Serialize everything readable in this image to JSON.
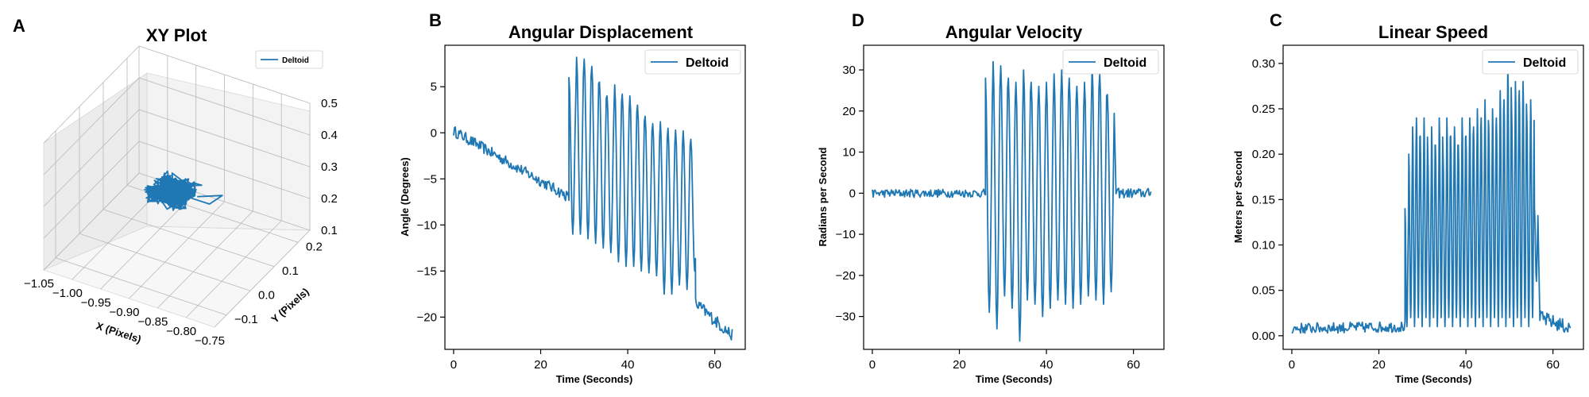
{
  "line_color": "#1f77b4",
  "chart_data": [
    {
      "id": "xy",
      "letter": "A",
      "type": "line3d",
      "title": "XY Plot",
      "xlabel": "X (Pixels)",
      "ylabel": "Y (Pixels)",
      "zlabel": "",
      "xlim": [
        -1.05,
        -0.75
      ],
      "ylim": [
        -0.15,
        0.25
      ],
      "zlim": [
        0.1,
        0.5
      ],
      "xticks": [
        "−1.05",
        "−1.00",
        "−0.95",
        "−0.90",
        "−0.85",
        "−0.80",
        "−0.75"
      ],
      "yticks": [
        "−0.1",
        "0.0",
        "0.1",
        "0.2"
      ],
      "zticks": [
        "0.1",
        "0.2",
        "0.3",
        "0.4",
        "0.5"
      ],
      "series": [
        {
          "name": "Deltoid",
          "center": [
            -0.9,
            0.03,
            0.3
          ],
          "spread": [
            0.035,
            0.045,
            0.02
          ]
        }
      ],
      "legend_loc": "upper-right"
    },
    {
      "id": "disp",
      "letter": "B",
      "type": "line",
      "title": "Angular Displacement",
      "xlabel": "Time (Seconds)",
      "ylabel": "Angle (Degrees)",
      "xlim": [
        -2,
        67
      ],
      "ylim": [
        -23.5,
        9.5
      ],
      "xticks": [
        0,
        20,
        40,
        60
      ],
      "yticks": [
        5,
        0,
        -5,
        -10,
        -15,
        -20
      ],
      "ytick_labels": [
        "5",
        "0",
        "−5",
        "−10",
        "−15",
        "−20"
      ],
      "series": [
        {
          "name": "Deltoid"
        }
      ],
      "legend_loc": "upper-right",
      "segments": [
        {
          "t_start": 0,
          "t_end": 26.5,
          "baseline_start": 0.2,
          "baseline_end": -7.0,
          "noise": 0.6
        },
        {
          "t_start": 26.5,
          "t_end": 55.6,
          "period": 1.75,
          "peaks": [
            6,
            8.2,
            8.0,
            7.2,
            5.5,
            4.0,
            5.2,
            4.2,
            4.0,
            3.0,
            1.8,
            1.0,
            1.2,
            0.5,
            0.3,
            0.2,
            -0.7
          ],
          "troughs": [
            -11,
            -11,
            -11.5,
            -12,
            -12.5,
            -13,
            -14,
            -14.5,
            -14.5,
            -15,
            -15.2,
            -15.5,
            -17.5,
            -17.5,
            -16.5,
            -17,
            -15
          ]
        },
        {
          "t_start": 55.6,
          "t_end": 64,
          "baseline_start": -18.5,
          "baseline_end": -22,
          "noise": 0.7
        }
      ]
    },
    {
      "id": "vel",
      "letter": "D",
      "type": "line",
      "title": "Angular Velocity",
      "xlabel": "Time (Seconds)",
      "ylabel": "Radians per Second",
      "xlim": [
        -2,
        67
      ],
      "ylim": [
        -38,
        36
      ],
      "xticks": [
        0,
        20,
        40,
        60
      ],
      "yticks": [
        30,
        20,
        10,
        0,
        -10,
        -20,
        -30
      ],
      "ytick_labels": [
        "30",
        "20",
        "10",
        "0",
        "−10",
        "−20",
        "−30"
      ],
      "series": [
        {
          "name": "Deltoid"
        }
      ],
      "legend_loc": "upper-right",
      "segments": [
        {
          "t_start": 0,
          "t_end": 26,
          "baseline_start": 0,
          "baseline_end": 0,
          "noise": 1.0
        },
        {
          "t_start": 26,
          "t_end": 56,
          "period": 1.75,
          "peaks": [
            28,
            32,
            31,
            28,
            27,
            30,
            27,
            26,
            27,
            29,
            30,
            28,
            26,
            27,
            31,
            29,
            24
          ],
          "troughs": [
            -29,
            -33,
            -25,
            -28,
            -36,
            -26,
            -27,
            -30,
            -28,
            -26,
            -27,
            -28,
            -27,
            -25,
            -26,
            -27,
            -24
          ]
        },
        {
          "t_start": 56,
          "t_end": 64,
          "baseline_start": 0,
          "baseline_end": 0,
          "noise": 1.2
        }
      ]
    },
    {
      "id": "speed",
      "letter": "C",
      "type": "line",
      "title": "Linear Speed",
      "xlabel": "Time (Seconds)",
      "ylabel": "Meters per Second",
      "xlim": [
        -2,
        67
      ],
      "ylim": [
        -0.015,
        0.32
      ],
      "xticks": [
        0,
        20,
        40,
        60
      ],
      "yticks": [
        0.3,
        0.25,
        0.2,
        0.15,
        0.1,
        0.05,
        0.0
      ],
      "ytick_labels": [
        "0.30",
        "0.25",
        "0.20",
        "0.15",
        "0.10",
        "0.05",
        "0.00"
      ],
      "series": [
        {
          "name": "Deltoid"
        }
      ],
      "legend_loc": "upper-right",
      "segments": [
        {
          "t_start": 0,
          "t_end": 26,
          "baseline_start": 0.008,
          "baseline_end": 0.01,
          "noise": 0.006
        },
        {
          "t_start": 26,
          "t_end": 57,
          "period": 0.875,
          "peaks": [
            0.14,
            0.2,
            0.23,
            0.24,
            0.22,
            0.24,
            0.2,
            0.23,
            0.21,
            0.24,
            0.2,
            0.24,
            0.22,
            0.23,
            0.21,
            0.24,
            0.22,
            0.24,
            0.23,
            0.25,
            0.24,
            0.26,
            0.23,
            0.25,
            0.24,
            0.27,
            0.26,
            0.3,
            0.25,
            0.28,
            0.27,
            0.28,
            0.24,
            0.26,
            0.14
          ],
          "troughs": [
            0.01,
            0.02,
            0.01,
            0.02,
            0.01,
            0.02,
            0.01,
            0.02,
            0.01,
            0.02,
            0.01,
            0.02,
            0.01,
            0.02,
            0.01,
            0.02,
            0.01,
            0.02,
            0.01,
            0.02,
            0.01,
            0.02,
            0.01,
            0.02,
            0.01,
            0.02,
            0.01,
            0.02,
            0.01,
            0.02,
            0.01,
            0.02,
            0.01,
            0.02,
            0.06
          ]
        },
        {
          "t_start": 57,
          "t_end": 64,
          "baseline_start": 0.02,
          "baseline_end": 0.008,
          "noise": 0.008
        }
      ]
    }
  ]
}
